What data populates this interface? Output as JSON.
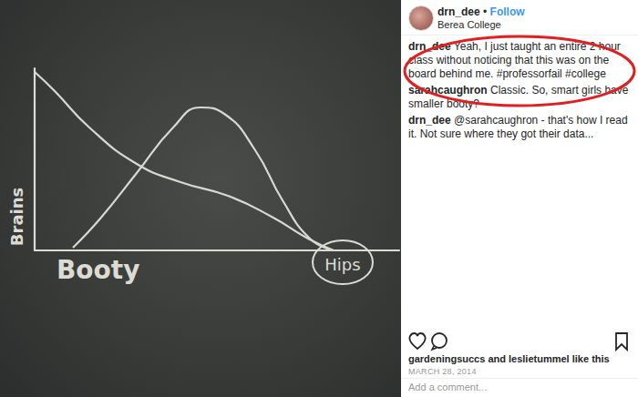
{
  "chart_data": {
    "type": "line",
    "x_label": "Booty",
    "y_label": "Brains",
    "annotation": "Hips",
    "xlim": [
      0,
      10
    ],
    "ylim": [
      0,
      10
    ],
    "tick_labels": false,
    "grid": false,
    "series": [
      {
        "color": "#d9d9d2",
        "line_style": "solid",
        "x": [
          0,
          0.55,
          1.5,
          2.8,
          4,
          5.3,
          6.5,
          7.5,
          8.2
        ],
        "values": [
          9.8,
          8.75,
          6.75,
          4.75,
          3.75,
          3.0,
          1.85,
          0.65,
          0
        ]
      },
      {
        "color": "#d9d9d2",
        "line_style": "solid",
        "x": [
          1.05,
          1.8,
          2.8,
          3.8,
          4.55,
          5.2,
          6.05,
          6.8,
          7.55,
          8.2
        ],
        "values": [
          0.15,
          1.75,
          4.25,
          6.75,
          7.85,
          7.5,
          5.5,
          2.75,
          0.65,
          0
        ]
      }
    ]
  },
  "post": {
    "username": "drn_dee",
    "separator": "•",
    "follow": "Follow",
    "location": "Berea College",
    "comments": [
      {
        "user": "drn_dee",
        "text": "Yeah, I just taught an entire 2 hour class without noticing that this was on the board behind me. #professorfail #college"
      },
      {
        "user": "sarahcaughron",
        "text": "Classic. So, smart girls have smaller booty?"
      },
      {
        "user": "drn_dee",
        "text": "@sarahcaughron - that's how I read it. Not sure where they got their data..."
      }
    ],
    "likes": "gardeningsuccs and leslietummel like this",
    "date": "MARCH 28, 2014",
    "add_comment": "Add a comment..."
  }
}
